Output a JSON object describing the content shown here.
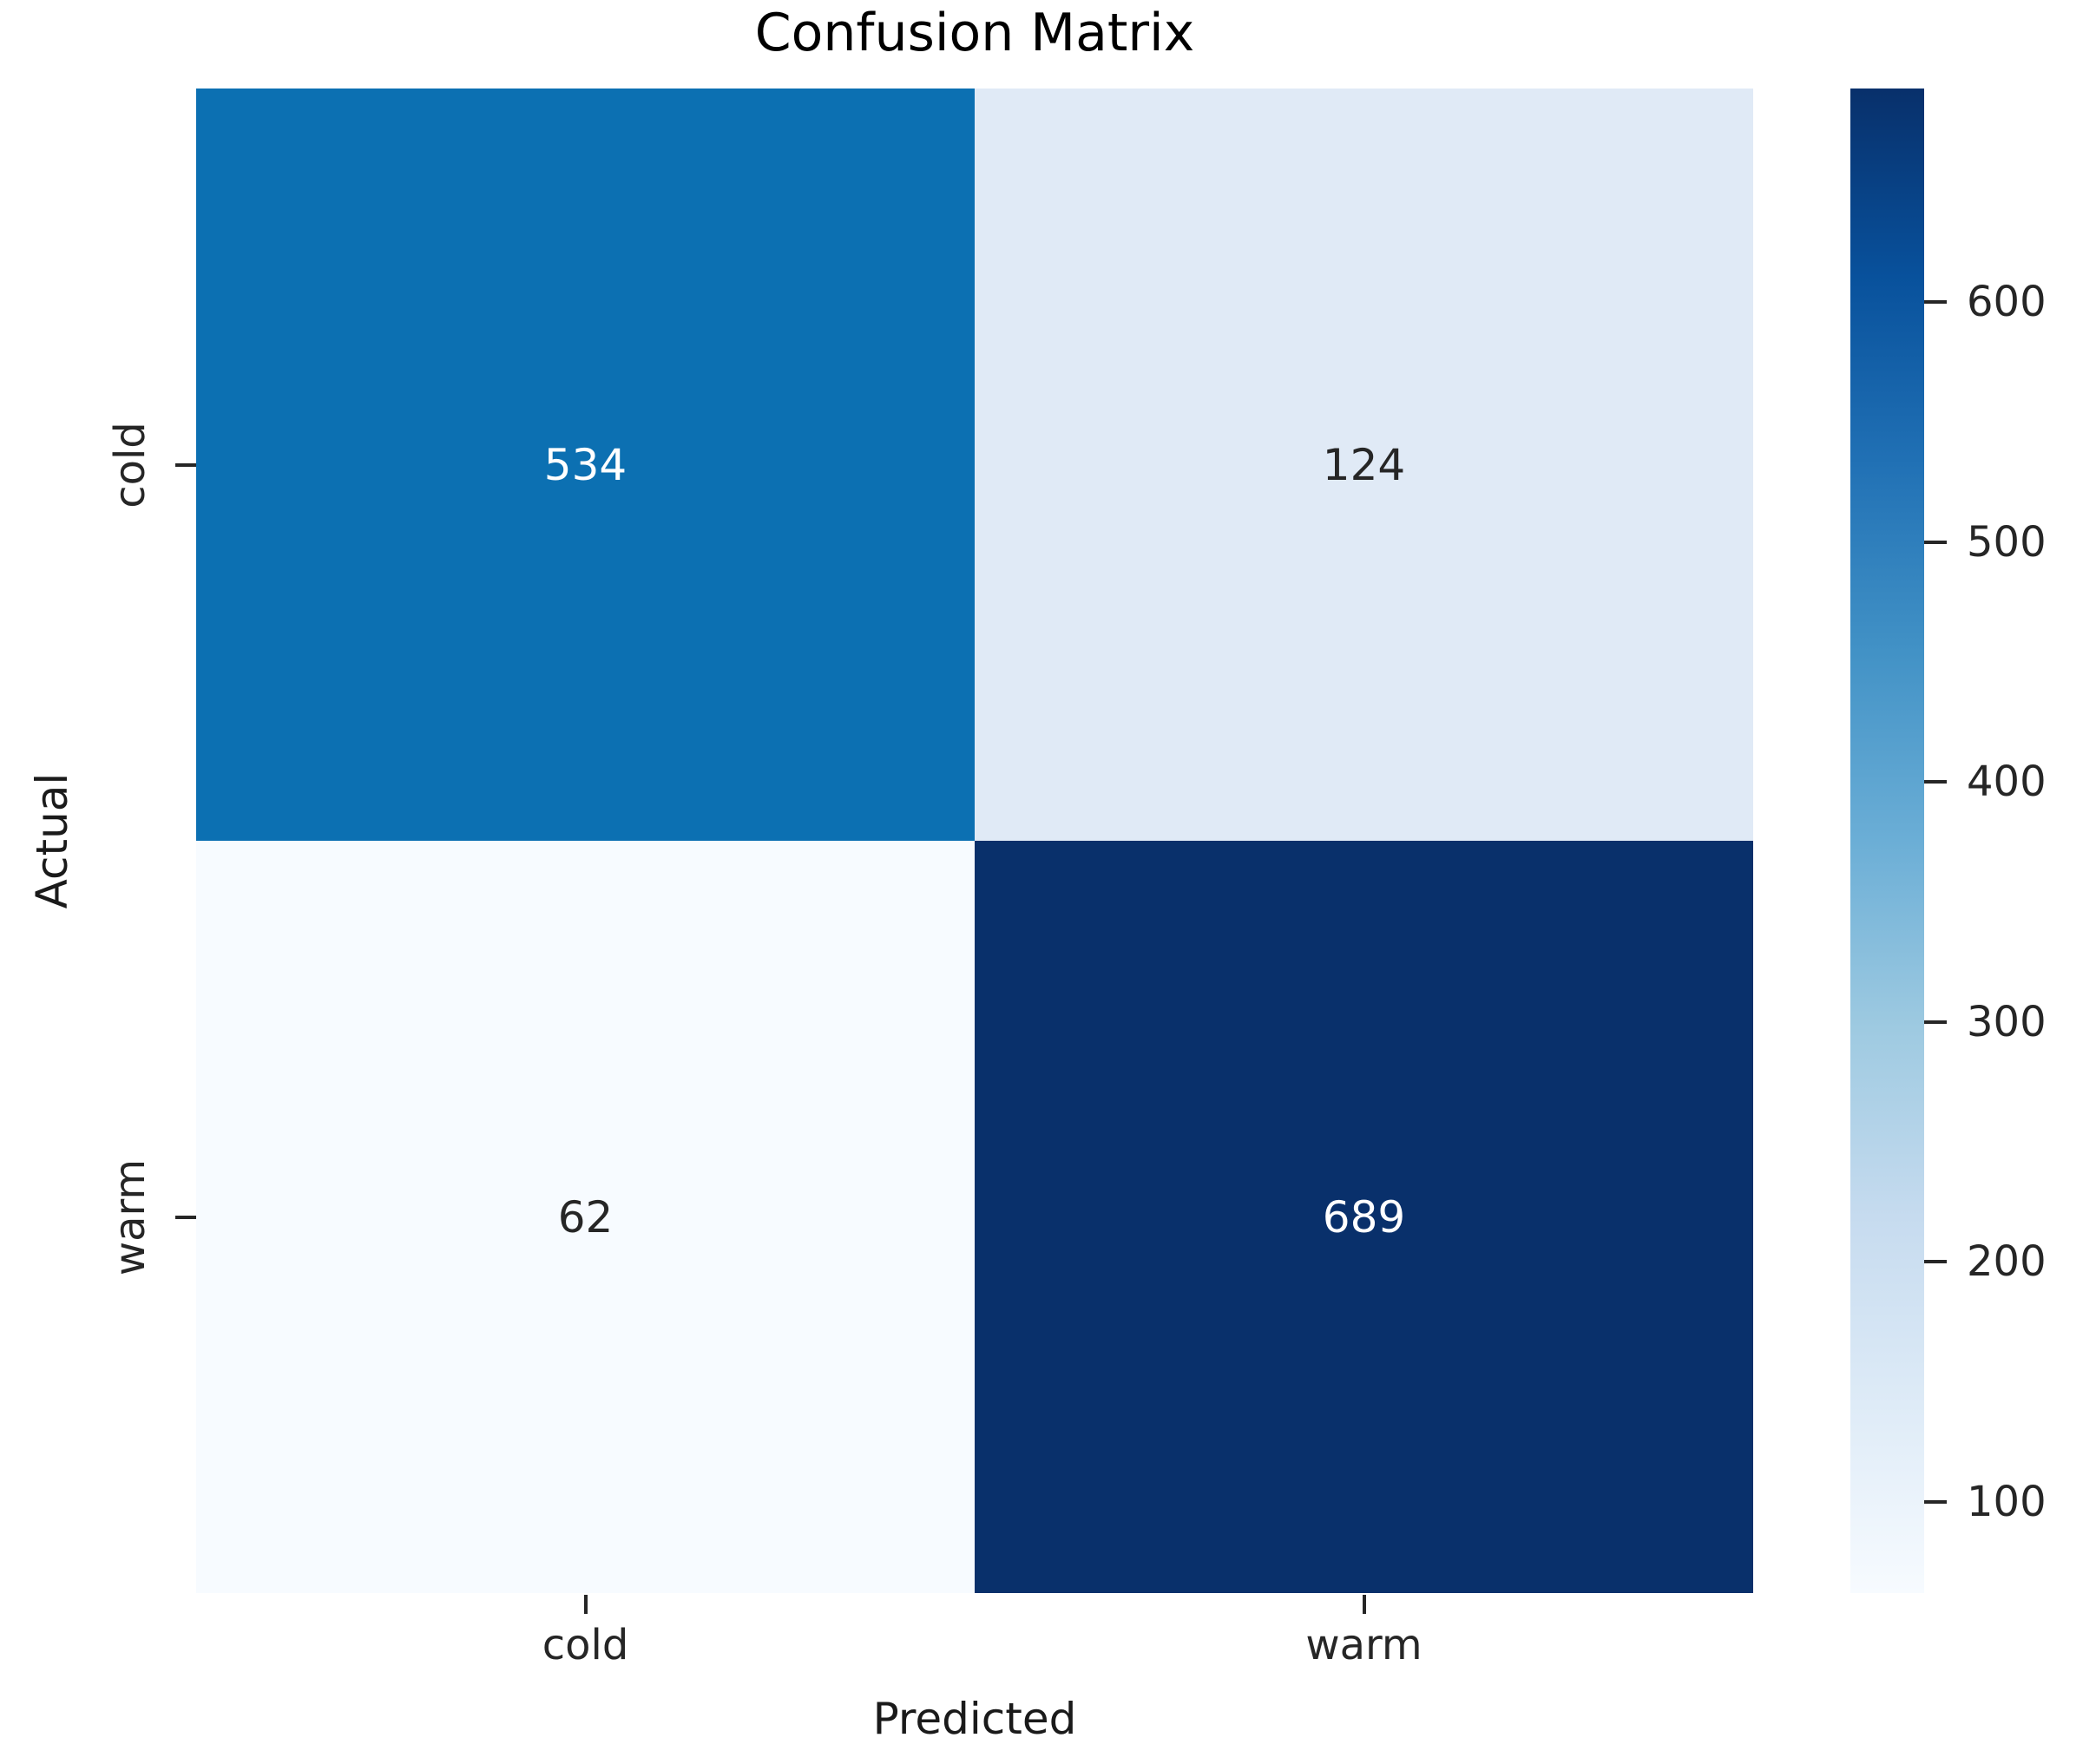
{
  "chart_data": {
    "type": "heatmap",
    "title": "Confusion Matrix",
    "xlabel": "Predicted",
    "ylabel": "Actual",
    "x_categories": [
      "cold",
      "warm"
    ],
    "y_categories": [
      "cold",
      "warm"
    ],
    "matrix": [
      [
        534,
        124
      ],
      [
        62,
        689
      ]
    ],
    "cell_colors": [
      [
        "#0c70b2",
        "#e0eaf6"
      ],
      [
        "#f7fbff",
        "#09306b"
      ]
    ],
    "cell_text_colors": [
      [
        "#ffffff",
        "#262626"
      ],
      [
        "#262626",
        "#ffffff"
      ]
    ],
    "colormap": "Blues",
    "vmin": 62,
    "vmax": 689,
    "colorbar_ticks": [
      100,
      200,
      300,
      400,
      500,
      600
    ],
    "legend_position": "right-colorbar",
    "grid": false,
    "background": "#ffffff"
  }
}
